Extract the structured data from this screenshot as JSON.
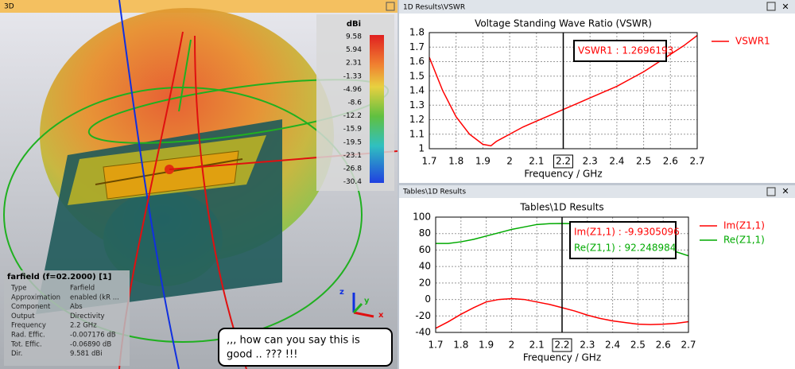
{
  "panels": {
    "left_title": "3D",
    "top_title": "1D Results\\VSWR",
    "bottom_title": "Tables\\1D Results"
  },
  "colorbar": {
    "title": "dBi",
    "ticks": [
      9.58,
      5.94,
      2.31,
      -1.33,
      -4.96,
      -8.6,
      -12.2,
      -15.9,
      -19.5,
      -23.1,
      -26.8,
      -30.4
    ]
  },
  "triad": [
    "z",
    "y",
    "x"
  ],
  "info": {
    "title": "farfield (f=02.2000) [1]",
    "rows": [
      [
        "Type",
        "Farfield"
      ],
      [
        "Approximation",
        "enabled (kR ..."
      ],
      [
        "Component",
        "Abs"
      ],
      [
        "Output",
        "Directivity"
      ],
      [
        "Frequency",
        "2.2 GHz"
      ],
      [
        "Rad. Effic.",
        "-0.007176 dB"
      ],
      [
        "Tot. Effic.",
        "-0.06890 dB"
      ],
      [
        "Dir.",
        "9.581 dBi"
      ]
    ]
  },
  "comment": [
    ",,, how can you say this is",
    "good .. ??? !!!"
  ],
  "chart_data": [
    {
      "type": "line",
      "title": "Voltage Standing Wave Ratio (VSWR)",
      "xlabel": "Frequency / GHz",
      "x": [
        1.7,
        1.75,
        1.8,
        1.85,
        1.9,
        1.93,
        1.95,
        2.0,
        2.05,
        2.1,
        2.15,
        2.2,
        2.25,
        2.3,
        2.35,
        2.4,
        2.45,
        2.5,
        2.55,
        2.6,
        2.65,
        2.7
      ],
      "series": [
        {
          "name": "VSWR1",
          "color": "#ff0000",
          "values": [
            1.63,
            1.4,
            1.22,
            1.1,
            1.03,
            1.02,
            1.05,
            1.1,
            1.15,
            1.19,
            1.23,
            1.27,
            1.31,
            1.35,
            1.39,
            1.43,
            1.48,
            1.53,
            1.59,
            1.65,
            1.71,
            1.78
          ]
        }
      ],
      "xlim": [
        1.7,
        2.7
      ],
      "ylim": [
        1,
        1.8
      ],
      "xticks": [
        1.7,
        1.8,
        1.9,
        2,
        2.1,
        2.2,
        2.3,
        2.4,
        2.5,
        2.6,
        2.7
      ],
      "yticks": [
        1,
        1.1,
        1.2,
        1.3,
        1.4,
        1.5,
        1.6,
        1.7,
        1.8
      ],
      "grid": true,
      "marker": {
        "x": 2.2,
        "labels": [
          "VSWR1 : 1.2696193"
        ]
      }
    },
    {
      "type": "line",
      "title": "Tables\\1D Results",
      "xlabel": "Frequency / GHz",
      "x": [
        1.7,
        1.75,
        1.8,
        1.85,
        1.9,
        1.95,
        2.0,
        2.05,
        2.1,
        2.15,
        2.2,
        2.25,
        2.3,
        2.35,
        2.4,
        2.45,
        2.5,
        2.55,
        2.6,
        2.65,
        2.7
      ],
      "series": [
        {
          "name": "Im(Z1,1)",
          "color": "#ff0000",
          "values": [
            -35,
            -27,
            -18,
            -10,
            -3,
            0,
            1,
            0,
            -3,
            -6,
            -9.93,
            -14,
            -19,
            -23,
            -26,
            -28,
            -30,
            -30.5,
            -30,
            -29,
            -27
          ]
        },
        {
          "name": "Re(Z1,1)",
          "color": "#00aa00",
          "values": [
            68,
            68,
            70,
            73,
            77,
            81,
            85,
            88,
            91,
            92,
            92.25,
            92,
            90,
            88,
            85,
            81,
            76,
            71,
            64,
            58,
            53
          ]
        }
      ],
      "xlim": [
        1.7,
        2.7
      ],
      "ylim": [
        -40,
        100
      ],
      "xticks": [
        1.7,
        1.8,
        1.9,
        2,
        2.1,
        2.2,
        2.3,
        2.4,
        2.5,
        2.6,
        2.7
      ],
      "yticks": [
        -40,
        -20,
        0,
        20,
        40,
        60,
        80,
        100
      ],
      "grid": true,
      "marker": {
        "x": 2.2,
        "labels": [
          "Im(Z1,1) : -9.9305096",
          "Re(Z1,1) : 92.248984"
        ]
      }
    }
  ]
}
